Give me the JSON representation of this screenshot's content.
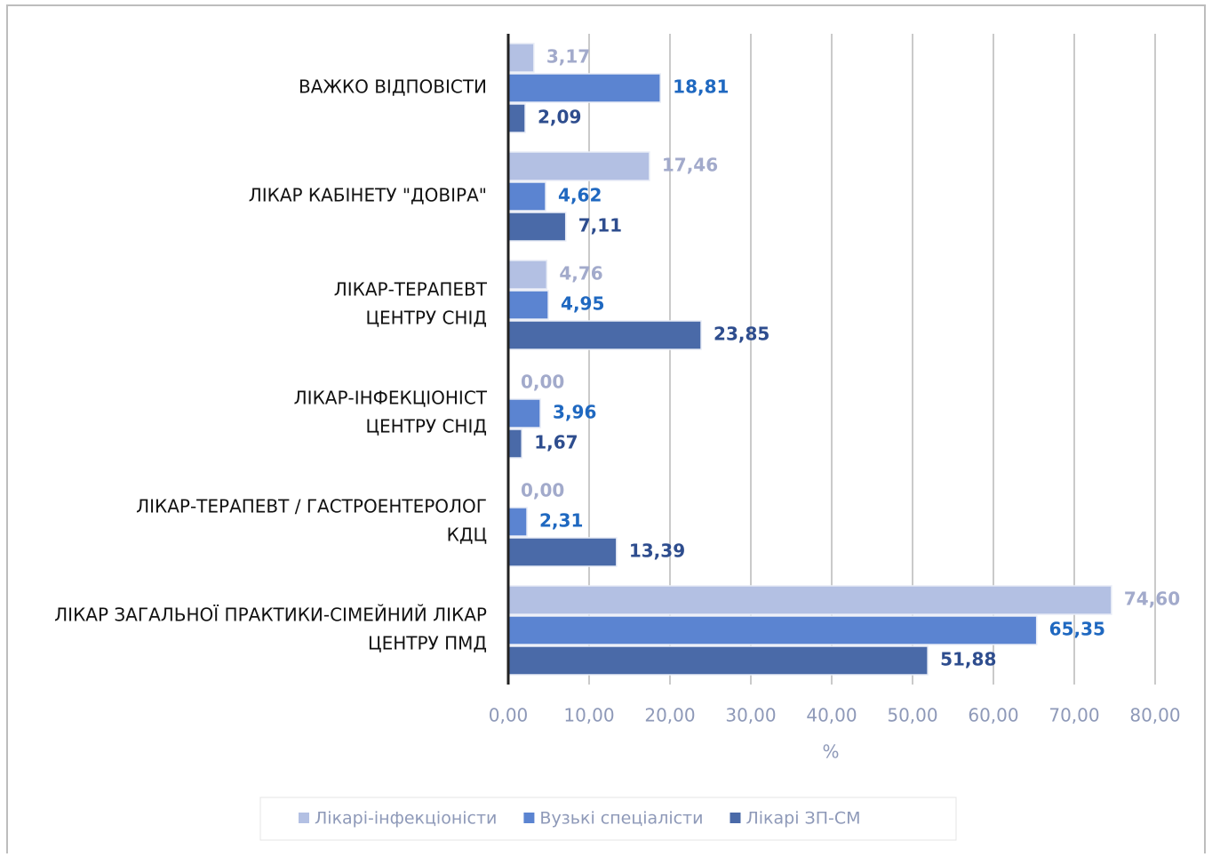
{
  "chart_data": {
    "type": "bar",
    "orientation": "horizontal",
    "categories": [
      [
        "ВАЖКО ВІДПОВІСТИ"
      ],
      [
        "ЛІКАР КАБІНЕТУ \"ДОВІРА\""
      ],
      [
        "ЛІКАР-ТЕРАПЕВТ",
        "ЦЕНТРУ СНІД"
      ],
      [
        "ЛІКАР-ІНФЕКЦІОНІСТ",
        "ЦЕНТРУ СНІД"
      ],
      [
        "ЛІКАР-ТЕРАПЕВТ / ГАСТРОЕНТЕРОЛОГ",
        "КДЦ"
      ],
      [
        "ЛІКАР ЗАГАЛЬНОЇ ПРАКТИКИ-СІМЕЙНИЙ ЛІКАР",
        "ЦЕНТРУ ПМД"
      ]
    ],
    "series": [
      {
        "name": "Лікарі-інфекціоністи",
        "color": "#b3c0e3",
        "label_color": "#a2aacb",
        "values": [
          3.17,
          17.46,
          4.76,
          0,
          0,
          74.6
        ],
        "value_labels": [
          "3,17",
          "17,46",
          "4,76",
          "0,00",
          "0,00",
          "74,60"
        ]
      },
      {
        "name": "Вузькі спеціалісти",
        "color": "#5b84d1",
        "label_color": "#1f68c0",
        "values": [
          18.81,
          4.62,
          4.95,
          3.96,
          2.31,
          65.35
        ],
        "value_labels": [
          "18,81",
          "4,62",
          "4,95",
          "3,96",
          "2,31",
          "65,35"
        ]
      },
      {
        "name": "Лікарі ЗП-СМ",
        "color": "#4a6aa8",
        "label_color": "#2e4d8e",
        "values": [
          2.09,
          7.11,
          23.85,
          1.67,
          13.39,
          51.88
        ],
        "value_labels": [
          "2,09",
          "7,11",
          "23,85",
          "1,67",
          "13,39",
          "51,88"
        ]
      }
    ],
    "xlabel": "%",
    "xlim": [
      0,
      80
    ],
    "xticks": [
      {
        "value": 0,
        "label": "0,00"
      },
      {
        "value": 10,
        "label": "10,00"
      },
      {
        "value": 20,
        "label": "20,00"
      },
      {
        "value": 30,
        "label": "30,00"
      },
      {
        "value": 40,
        "label": "40,00"
      },
      {
        "value": 50,
        "label": "50,00"
      },
      {
        "value": 60,
        "label": "60,00"
      },
      {
        "value": 70,
        "label": "70,00"
      },
      {
        "value": 80,
        "label": "80,00"
      }
    ],
    "grid": true,
    "legend": "bottom"
  }
}
